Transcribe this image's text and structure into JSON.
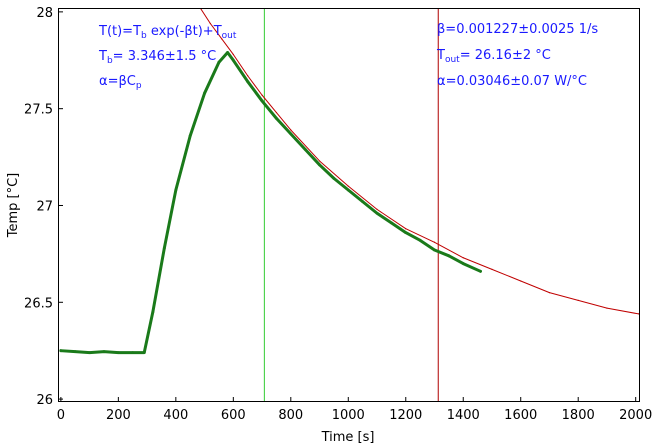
{
  "chart_data": {
    "type": "line",
    "title": "",
    "xlabel": "Time [s]",
    "ylabel": "Temp [°C]",
    "xlim": [
      -10,
      2015
    ],
    "ylim": [
      25.985,
      28.02
    ],
    "x_ticks": [
      0,
      200,
      400,
      600,
      800,
      1000,
      1200,
      1400,
      1600,
      1800,
      2000
    ],
    "x_tick_labels": [
      "0",
      "200",
      "400",
      "600",
      "800",
      "1000",
      "1200",
      "1400",
      "1600",
      "1800",
      "2000"
    ],
    "y_ticks": [
      26,
      26.5,
      27,
      27.5,
      28
    ],
    "y_tick_labels": [
      "26",
      "26.5",
      "27",
      "27.5",
      "28"
    ],
    "grid": false,
    "legend": "none",
    "series": [
      {
        "role": "measured",
        "color": "#1a7a1a",
        "x": [
          0,
          50,
          100,
          150,
          200,
          250,
          290,
          320,
          360,
          400,
          450,
          500,
          550,
          580,
          600,
          650,
          700,
          750,
          800,
          850,
          900,
          950,
          1000,
          1050,
          1100,
          1150,
          1200,
          1250,
          1300,
          1350,
          1400,
          1460
        ],
        "y": [
          26.25,
          26.245,
          26.24,
          26.245,
          26.24,
          26.24,
          26.24,
          26.45,
          26.78,
          27.08,
          27.36,
          27.58,
          27.74,
          27.79,
          27.75,
          27.64,
          27.54,
          27.45,
          27.37,
          27.29,
          27.21,
          27.14,
          27.08,
          27.02,
          26.96,
          26.91,
          26.86,
          26.82,
          26.77,
          26.74,
          26.7,
          26.66
        ]
      },
      {
        "role": "fit",
        "color": "#c00000",
        "x": [
          485,
          520,
          560,
          600,
          650,
          700,
          750,
          800,
          900,
          1000,
          1100,
          1200,
          1300,
          1400,
          1500,
          1600,
          1700,
          1800,
          1900,
          2010
        ],
        "y": [
          28.02,
          27.94,
          27.86,
          27.78,
          27.67,
          27.57,
          27.48,
          27.39,
          27.23,
          27.1,
          26.98,
          26.88,
          26.81,
          26.73,
          26.67,
          26.61,
          26.55,
          26.51,
          26.47,
          26.44
        ]
      }
    ],
    "vlines": [
      {
        "x": 708,
        "color": "#33cc33"
      },
      {
        "x": 1313,
        "color": "#b00000"
      }
    ],
    "annotations": {
      "formula": {
        "main": "T(t)=T",
        "sub1": "b",
        "mid": " exp(-βt)+T",
        "sub2": "out"
      },
      "tb": {
        "pre": "T",
        "sub": "b",
        "post": "= 3.346±1.5 °C"
      },
      "alpha_def": {
        "pre": "α=βC",
        "sub": "p"
      },
      "beta": "β=0.001227±0.0025 1/s",
      "tout": {
        "pre": "T",
        "sub": "out",
        "post": "= 26.16±2 °C"
      },
      "alpha_val": "α=0.03046±0.07 W/°C"
    }
  }
}
